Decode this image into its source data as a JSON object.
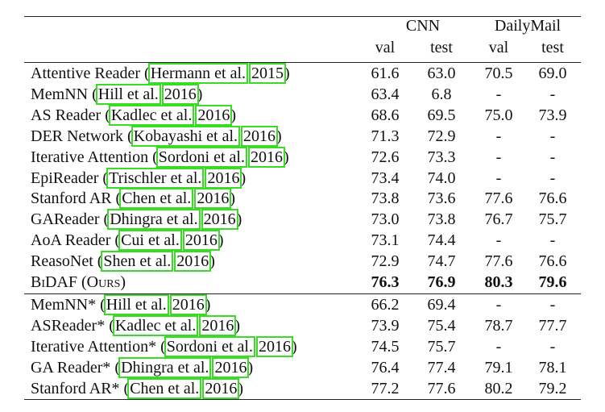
{
  "header": {
    "group1": "CNN",
    "group2": "DailyMail",
    "cols": [
      "val",
      "test",
      "val",
      "test"
    ]
  },
  "rows": [
    {
      "pre": "Attentive Reader (",
      "c1": "Hermann et al.",
      "mid": " ",
      "c2": "2015",
      "post": ")",
      "v": [
        "61.6",
        "63.0",
        "70.5",
        "69.0"
      ]
    },
    {
      "pre": "MemNN (",
      "c1": "Hill et al.",
      "mid": " ",
      "c2": "2016",
      "post": ")",
      "v": [
        "63.4",
        "6.8",
        "-",
        "-"
      ]
    },
    {
      "pre": "AS Reader (",
      "c1": "Kadlec et al.",
      "mid": " ",
      "c2": "2016",
      "post": ")",
      "v": [
        "68.6",
        "69.5",
        "75.0",
        "73.9"
      ]
    },
    {
      "pre": "DER Network (",
      "c1": "Kobayashi et al.",
      "mid": " ",
      "c2": "2016",
      "post": ")",
      "v": [
        "71.3",
        "72.9",
        "-",
        "-"
      ]
    },
    {
      "pre": "Iterative Attention (",
      "c1": "Sordoni et al.",
      "mid": " ",
      "c2": "2016",
      "post": ")",
      "v": [
        "72.6",
        "73.3",
        "-",
        "-"
      ]
    },
    {
      "pre": "EpiReader (",
      "c1": "Trischler et al.",
      "mid": " ",
      "c2": "2016",
      "post": ")",
      "v": [
        "73.4",
        "74.0",
        "-",
        "-"
      ]
    },
    {
      "pre": "Stanford AR (",
      "c1": "Chen et al.",
      "mid": " ",
      "c2": "2016",
      "post": ")",
      "v": [
        "73.8",
        "73.6",
        "77.6",
        "76.6"
      ]
    },
    {
      "pre": "GAReader (",
      "c1": "Dhingra et al.",
      "mid": " ",
      "c2": "2016",
      "post": ")",
      "v": [
        "73.0",
        "73.8",
        "76.7",
        "75.7"
      ]
    },
    {
      "pre": "AoA Reader (",
      "c1": "Cui et al.",
      "mid": " ",
      "c2": "2016",
      "post": ")",
      "v": [
        "73.1",
        "74.4",
        "-",
        "-"
      ]
    },
    {
      "pre": "ReasoNet (",
      "c1": "Shen et al.",
      "mid": " ",
      "c2": "2016",
      "post": ")",
      "v": [
        "72.9",
        "74.7",
        "77.6",
        "76.6"
      ]
    },
    {
      "pre": "BiDAF (Ours)",
      "c1": "",
      "mid": "",
      "c2": "",
      "post": "",
      "v": [
        "76.3",
        "76.9",
        "80.3",
        "79.6"
      ]
    }
  ],
  "ensemble_rows": [
    {
      "pre": "MemNN* (",
      "c1": "Hill et al.",
      "mid": " ",
      "c2": "2016",
      "post": ")",
      "v": [
        "66.2",
        "69.4",
        "-",
        "-"
      ]
    },
    {
      "pre": "ASReader* (",
      "c1": "Kadlec et al.",
      "mid": " ",
      "c2": "2016",
      "post": ")",
      "v": [
        "73.9",
        "75.4",
        "78.7",
        "77.7"
      ]
    },
    {
      "pre": "Iterative Attention* (",
      "c1": "Sordoni et al.",
      "mid": " ",
      "c2": "2016",
      "post": ")",
      "v": [
        "74.5",
        "75.7",
        "-",
        "-"
      ]
    },
    {
      "pre": "GA Reader* (",
      "c1": "Dhingra et al.",
      "mid": " ",
      "c2": "2016",
      "post": ")",
      "v": [
        "76.4",
        "77.4",
        "79.1",
        "78.1"
      ]
    },
    {
      "pre": "Stanford AR* (",
      "c1": "Chen et al.",
      "mid": " ",
      "c2": "2016",
      "post": ")",
      "v": [
        "77.2",
        "77.6",
        "80.2",
        "79.2"
      ]
    }
  ]
}
